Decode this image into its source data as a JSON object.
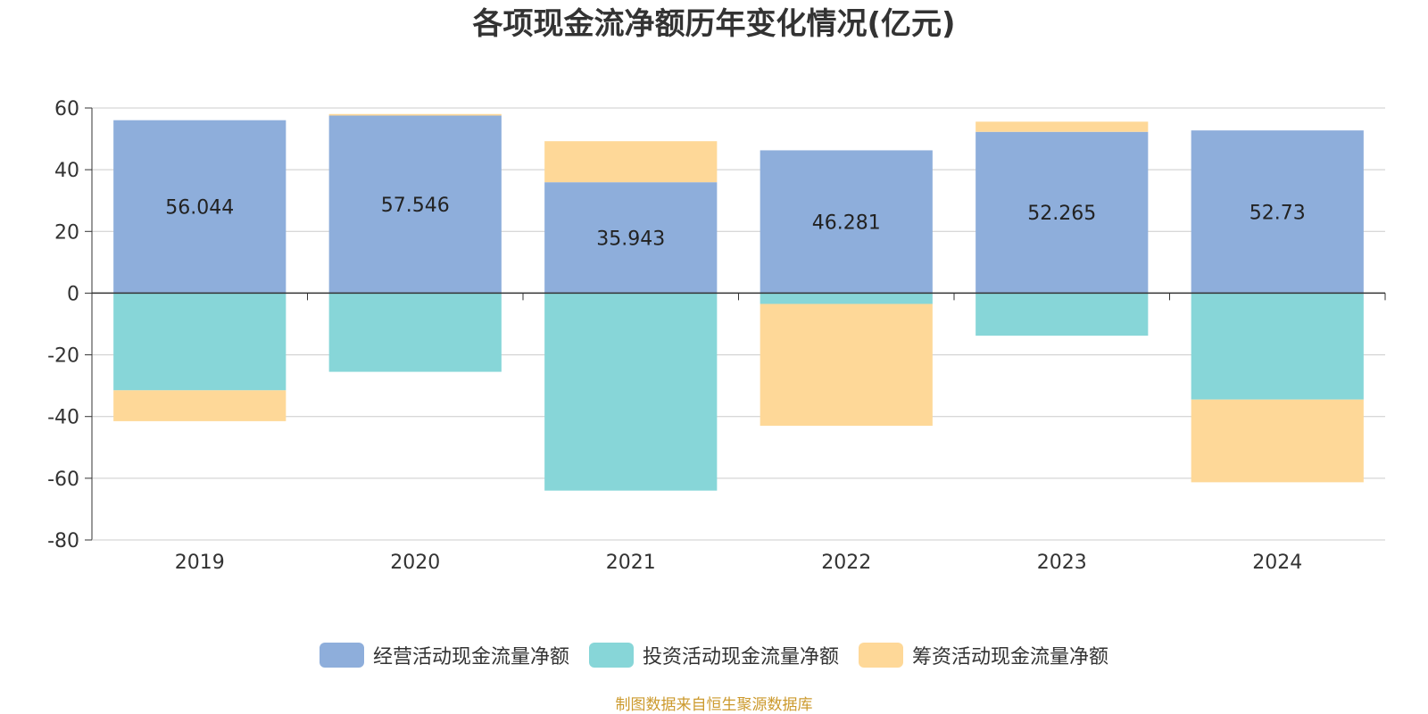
{
  "chart_data": {
    "type": "bar",
    "stacked": true,
    "title": "各项现金流净额历年变化情况(亿元)",
    "categories": [
      "2019",
      "2020",
      "2021",
      "2022",
      "2023",
      "2024"
    ],
    "ylim": [
      -80,
      60
    ],
    "yticks": [
      60,
      40,
      20,
      0,
      -20,
      -40,
      -60,
      -80
    ],
    "grid": true,
    "legend_position": "bottom",
    "series": [
      {
        "name": "经营活动现金流量净额",
        "color": "#8eaedb",
        "values": [
          56.044,
          57.546,
          35.943,
          46.281,
          52.265,
          52.73
        ],
        "labels": [
          "56.044",
          "57.546",
          "35.943",
          "46.281",
          "52.265",
          "52.73"
        ]
      },
      {
        "name": "投资活动现金流量净额",
        "color": "#87d6d8",
        "values": [
          -31.5,
          -25.5,
          -64.0,
          -3.5,
          -13.8,
          -34.5
        ]
      },
      {
        "name": "筹资活动现金流量净额",
        "color": "#fed898",
        "values": [
          -10.0,
          0.5,
          13.3,
          -39.5,
          3.3,
          -26.8
        ]
      }
    ]
  },
  "source": "制图数据来自恒生聚源数据库"
}
